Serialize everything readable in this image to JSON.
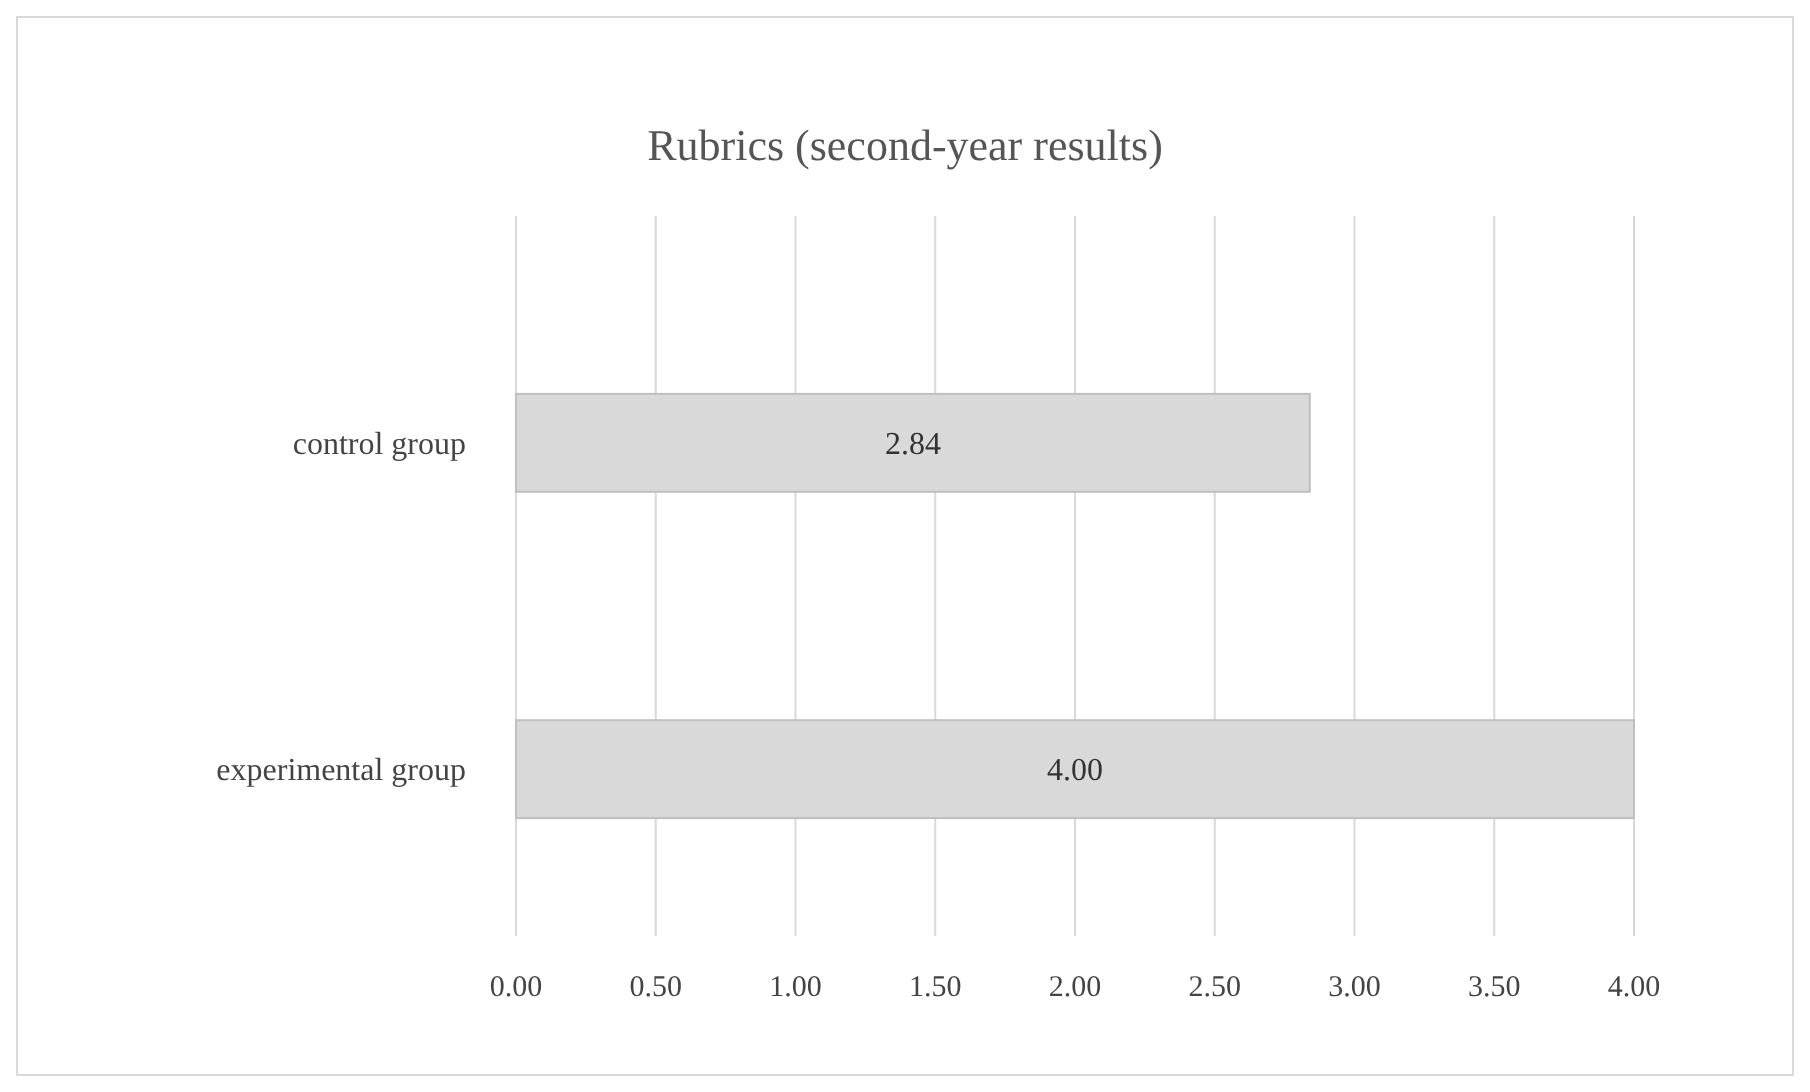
{
  "chart_data": {
    "type": "bar",
    "orientation": "horizontal",
    "title": "Rubrics (second-year results)",
    "categories": [
      "control group",
      "experimental group"
    ],
    "values": [
      2.84,
      4.0
    ],
    "value_labels": [
      "2.84",
      "4.00"
    ],
    "color": "#d9d9d9",
    "xlim": [
      0,
      4
    ],
    "xticks": [
      {
        "value": 0,
        "label": "0.00"
      },
      {
        "value": 0.5,
        "label": "0.50"
      },
      {
        "value": 1,
        "label": "1.00"
      },
      {
        "value": 1.5,
        "label": "1.50"
      },
      {
        "value": 2,
        "label": "2.00"
      },
      {
        "value": 2.5,
        "label": "2.50"
      },
      {
        "value": 3,
        "label": "3.00"
      },
      {
        "value": 3.5,
        "label": "3.50"
      },
      {
        "value": 4,
        "label": "4.00"
      }
    ],
    "grid": "x"
  }
}
